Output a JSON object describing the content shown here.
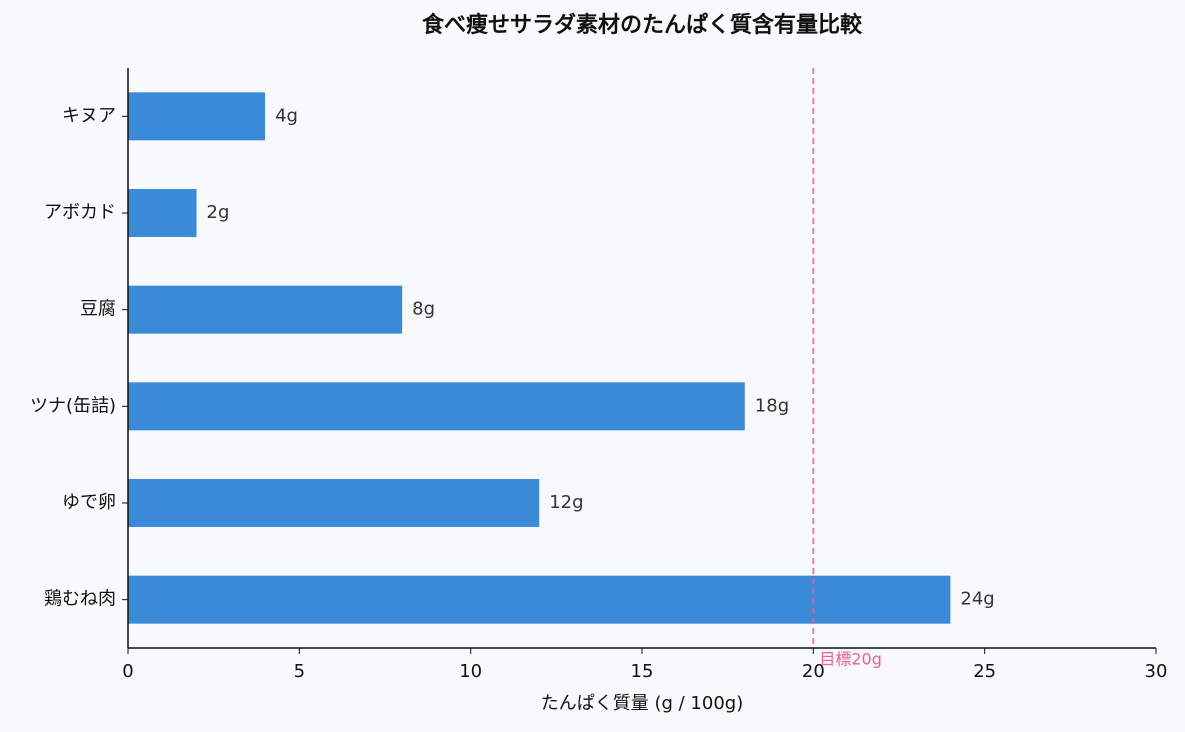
{
  "chart_data": {
    "type": "barh",
    "title": "食べ痩せサラダ素材のたんぱく質含有量比較",
    "xlabel": "たんぱく質量 (g / 100g)",
    "categories": [
      "キヌア",
      "アボカド",
      "豆腐",
      "ツナ(缶詰)",
      "ゆで卵",
      "鶏むね肉"
    ],
    "values": [
      4,
      2,
      8,
      18,
      12,
      24
    ],
    "value_labels": [
      "4g",
      "2g",
      "8g",
      "18g",
      "12g",
      "24g"
    ],
    "color": "#3a8ad8",
    "xlim": [
      0,
      30
    ],
    "xticks": [
      0,
      5,
      10,
      15,
      20,
      25,
      30
    ],
    "reference_line": {
      "value": 20,
      "label": "目標20g",
      "color": "#e8609a"
    }
  }
}
